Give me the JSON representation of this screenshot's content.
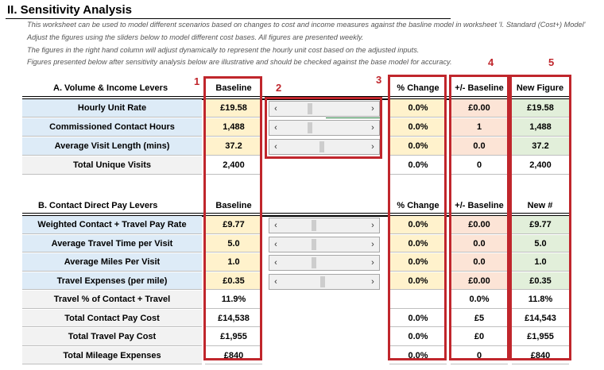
{
  "title": "II.  Sensitivity Analysis",
  "description": [
    "This worksheet can be used to model different scenarios based on changes to cost and income measures against the basline model in worksheet 'I. Standard (Cost+) Model'",
    "Adjust the figures using the sliders below to model different cost bases.  All figures are presented weekly.",
    "The figures in the right hand column will adjust dynamically to represent the hourly unit cost based on the adjusted inputs.",
    "Figures presented below after sensitivity analysis  below are illustrative and should be checked against the base model for accuracy."
  ],
  "callouts": [
    "1",
    "2",
    "3",
    "4",
    "5"
  ],
  "sectionA": {
    "title": "A. Volume & Income Levers",
    "headers": {
      "baseline": "Baseline",
      "pct": "% Change",
      "diff": "+/- Baseline",
      "new": "New Figure"
    },
    "rows": [
      {
        "label": "Hourly Unit Rate",
        "baseline": "£19.58",
        "pct": "0.0%",
        "diff": "£0.00",
        "new": "£19.58"
      },
      {
        "label": "Commissioned Contact Hours",
        "baseline": "1,488",
        "pct": "0.0%",
        "diff": "1",
        "new": "1,488"
      },
      {
        "label": "Average Visit Length (mins)",
        "baseline": "37.2",
        "pct": "0.0%",
        "diff": "0.0",
        "new": "37.2"
      },
      {
        "label": "Total Unique Visits",
        "baseline": "2,400",
        "pct": "0.0%",
        "diff": "0",
        "new": "2,400"
      }
    ],
    "sliders": [
      0.31,
      0.31,
      0.46
    ]
  },
  "sectionB": {
    "title": "B. Contact Direct Pay Levers",
    "headers": {
      "baseline": "Baseline",
      "pct": "% Change",
      "diff": "+/- Baseline",
      "new": "New #"
    },
    "rows": [
      {
        "label": "Weighted Contact + Travel Pay Rate",
        "baseline": "£9.77",
        "pct": "0.0%",
        "diff": "£0.00",
        "new": "£9.77"
      },
      {
        "label": "Average Travel Time per Visit",
        "baseline": "5.0",
        "pct": "0.0%",
        "diff": "0.0",
        "new": "5.0"
      },
      {
        "label": "Average Miles Per Visit",
        "baseline": "1.0",
        "pct": "0.0%",
        "diff": "0.0",
        "new": "1.0"
      },
      {
        "label": "Travel Expenses (per mile)",
        "baseline": "£0.35",
        "pct": "0.0%",
        "diff": "£0.00",
        "new": "£0.35"
      },
      {
        "label": "Travel % of Contact + Travel",
        "baseline": "11.9%",
        "pct": "",
        "diff": "0.0%",
        "new": "11.8%"
      },
      {
        "label": "Total Contact Pay Cost",
        "baseline": "£14,538",
        "pct": "0.0%",
        "diff": "£5",
        "new": "£14,543"
      },
      {
        "label": "Total Travel Pay Cost",
        "baseline": "£1,955",
        "pct": "0.0%",
        "diff": "£0",
        "new": "£1,955"
      },
      {
        "label": "Total Mileage Expenses",
        "baseline": "£840",
        "pct": "0.0%",
        "diff": "0",
        "new": "£840"
      }
    ],
    "sliders": [
      0.36,
      0.36,
      0.36,
      0.47
    ]
  },
  "colors": {
    "highlight": "#c0262c",
    "blue": "#ddebf7",
    "yellow": "#fff2cc",
    "orange": "#fce4d6",
    "green": "#e2efda"
  }
}
